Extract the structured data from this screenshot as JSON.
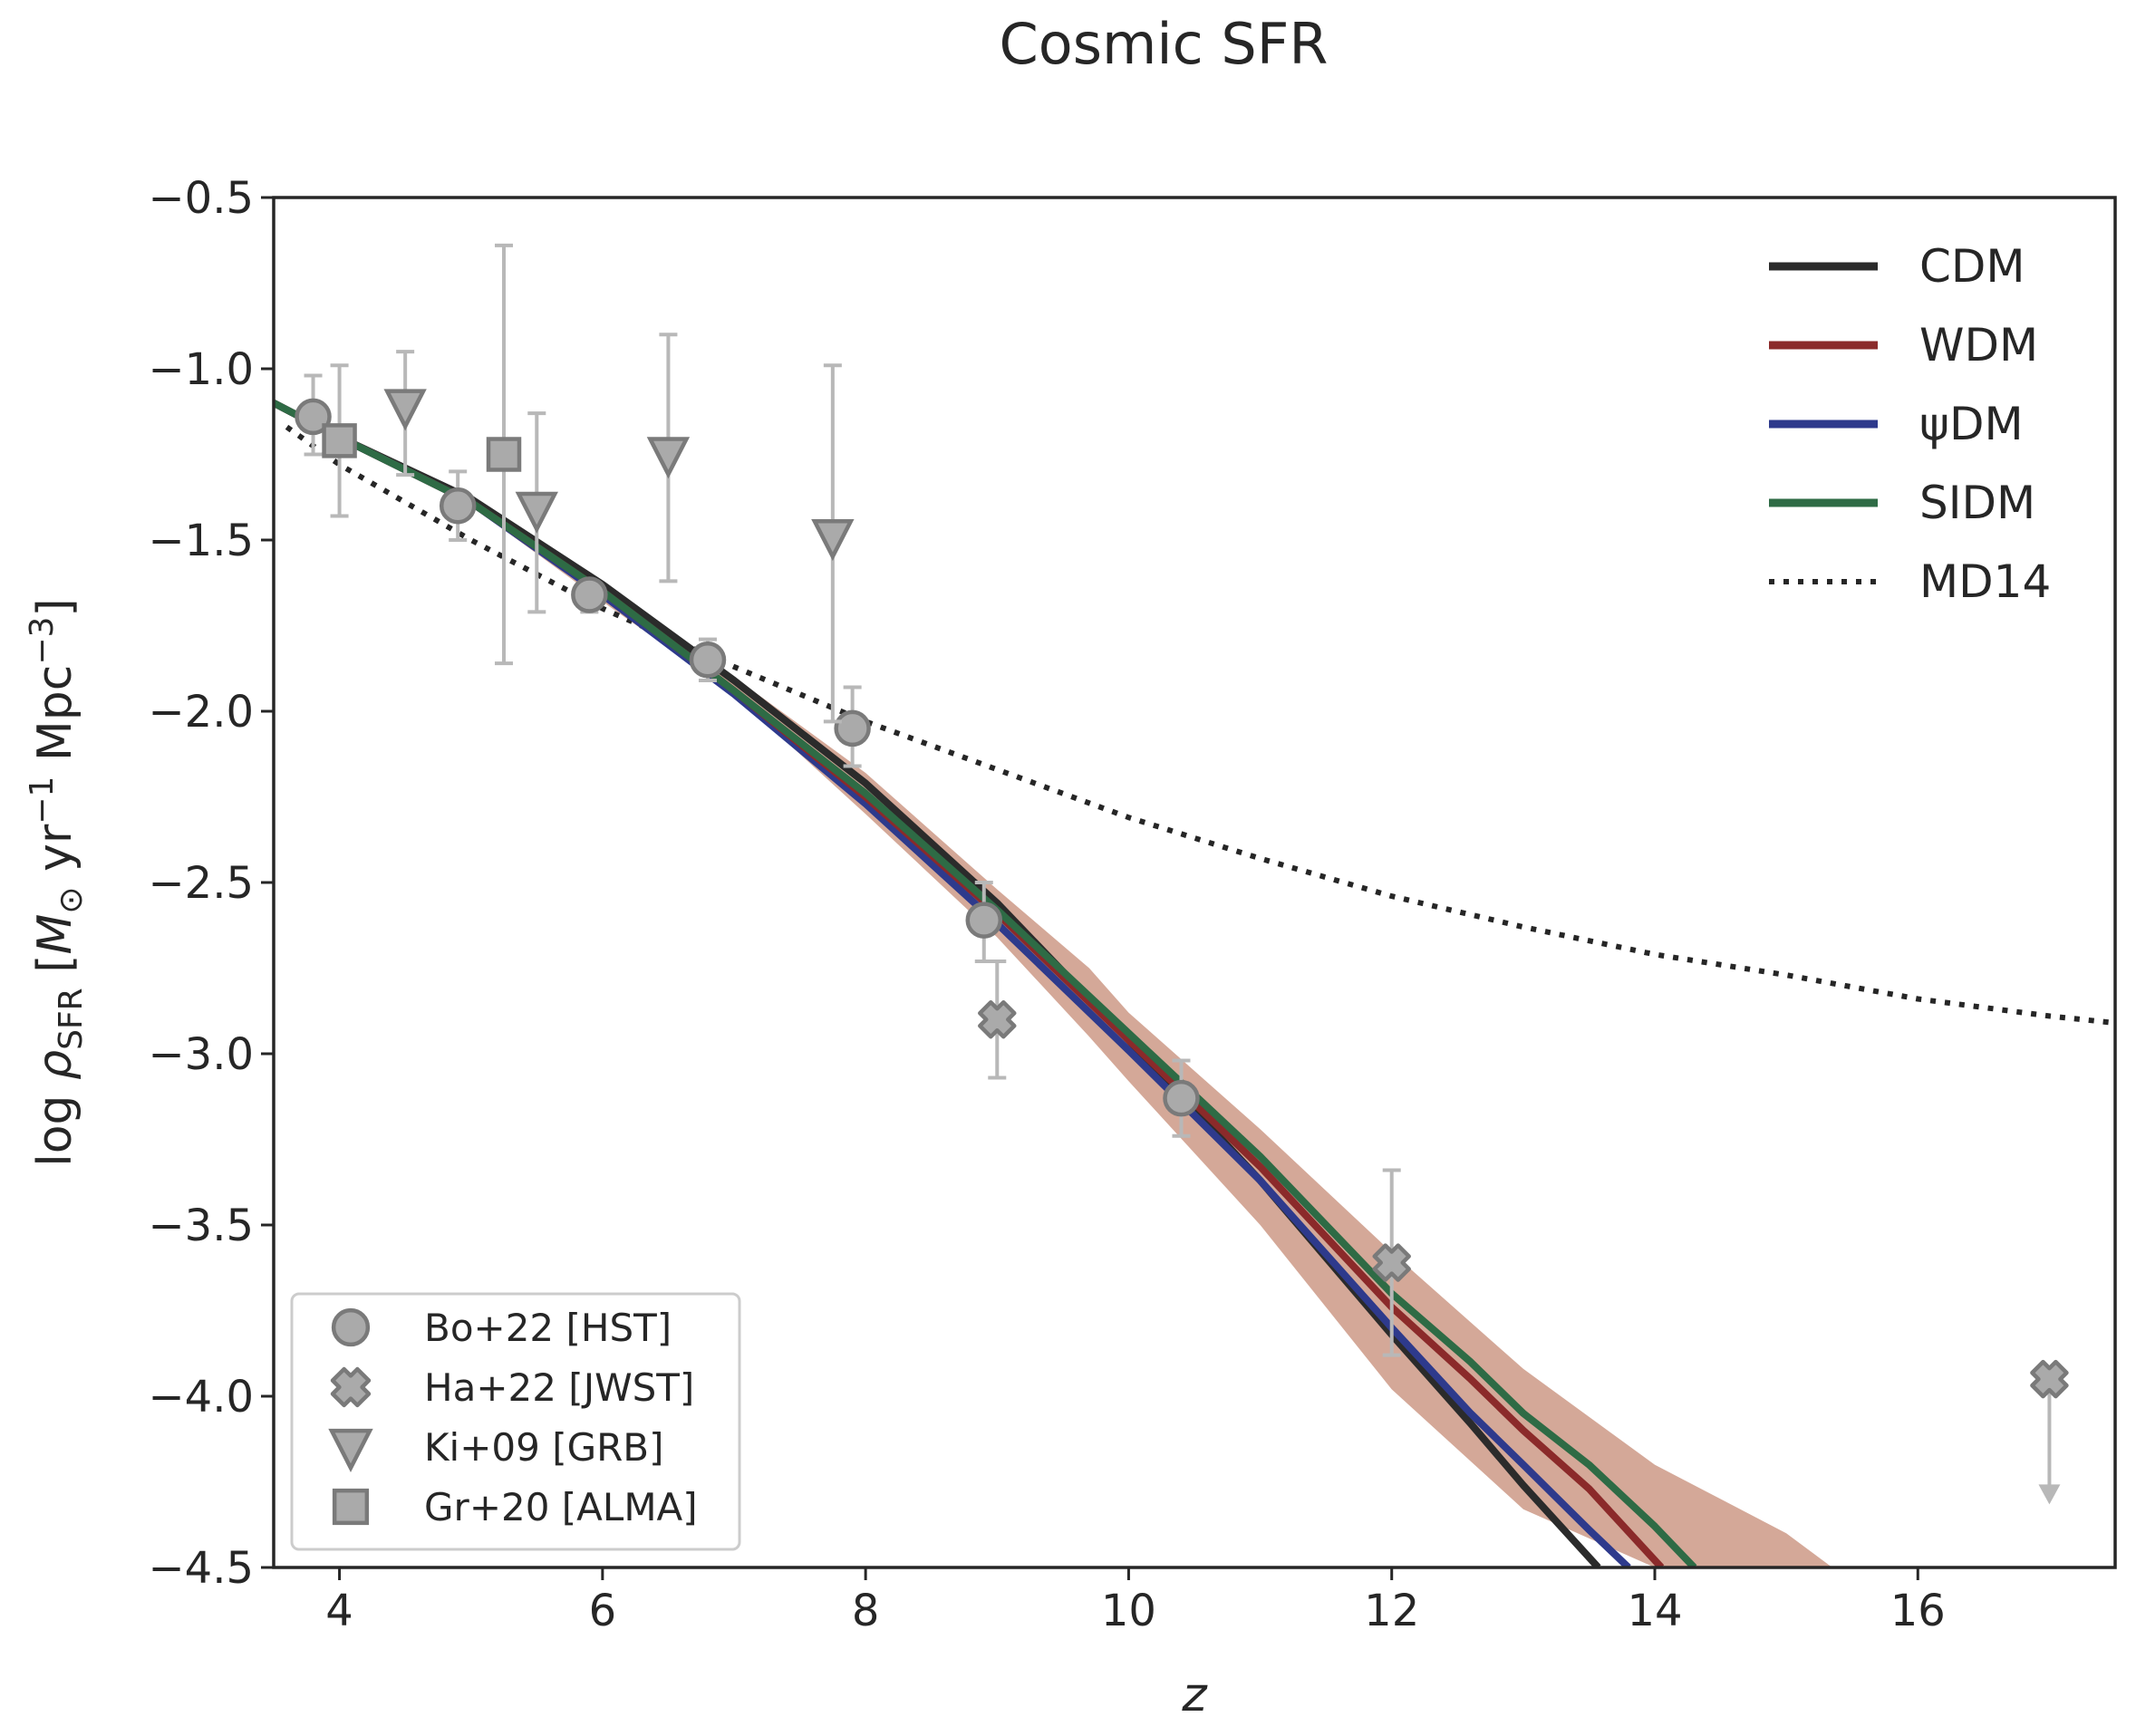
{
  "chart_data": {
    "type": "line",
    "title": "Cosmic SFR",
    "xlabel": "z",
    "ylabel": "log ρ_SFR [M_⊙ yr⁻¹ Mpc⁻³]",
    "xlim": [
      3.5,
      17.5
    ],
    "ylim": [
      -4.5,
      -0.5
    ],
    "xticks": [
      4,
      6,
      8,
      10,
      12,
      14,
      16
    ],
    "yticks": [
      -0.5,
      -1.0,
      -1.5,
      -2.0,
      -2.5,
      -3.0,
      -3.5,
      -4.0,
      -4.5
    ],
    "xtick_labels": [
      "4",
      "6",
      "8",
      "10",
      "12",
      "14",
      "16"
    ],
    "ytick_labels": [
      "−0.5",
      "−1.0",
      "−1.5",
      "−2.0",
      "−2.5",
      "−3.0",
      "−3.5",
      "−4.0",
      "−4.5"
    ],
    "grid": false,
    "colors": {
      "CDM": "#2b2b2b",
      "WDM": "#8b2a2a",
      "psiDM": "#2e3a8c",
      "SIDM": "#2e6b45",
      "MD14": "#262626",
      "band": "#d4a898",
      "data_marker": "#aaaaaa",
      "data_edge": "#7a7a7a",
      "errorbar": "#b8b8b8"
    },
    "band": {
      "name": "uncertainty",
      "x": [
        3.5,
        4,
        5,
        6,
        7,
        8,
        9,
        9.7,
        10,
        11,
        12,
        13,
        14,
        15,
        15.35
      ],
      "upper": [
        -1.1,
        -1.2,
        -1.4,
        -1.66,
        -1.9,
        -2.18,
        -2.52,
        -2.75,
        -2.88,
        -3.22,
        -3.58,
        -3.92,
        -4.2,
        -4.4,
        -4.5
      ],
      "lower": [
        -1.1,
        -1.2,
        -1.4,
        -1.68,
        -1.95,
        -2.3,
        -2.66,
        -2.95,
        -3.08,
        -3.5,
        -3.98,
        -4.33,
        -4.5,
        -4.5,
        -4.5
      ]
    },
    "series": [
      {
        "name": "CDM",
        "style": "solid",
        "x": [
          3.5,
          4,
          5,
          6,
          7,
          8,
          9,
          10,
          11,
          12,
          12.6,
          13,
          13.57
        ],
        "y": [
          -1.1,
          -1.2,
          -1.38,
          -1.63,
          -1.91,
          -2.21,
          -2.56,
          -2.96,
          -3.37,
          -3.82,
          -4.08,
          -4.26,
          -4.5
        ]
      },
      {
        "name": "WDM",
        "style": "solid",
        "x": [
          3.5,
          4,
          5,
          6,
          7,
          8,
          9,
          10,
          11,
          12,
          12.6,
          13,
          13.5,
          14.05
        ],
        "y": [
          -1.1,
          -1.2,
          -1.39,
          -1.65,
          -1.94,
          -2.25,
          -2.59,
          -2.96,
          -3.33,
          -3.74,
          -3.95,
          -4.1,
          -4.27,
          -4.5
        ]
      },
      {
        "name": "ψDM",
        "style": "solid",
        "x": [
          3.5,
          4,
          5,
          6,
          7,
          8,
          9,
          10,
          11,
          12,
          12.6,
          13,
          13.5,
          13.8
        ],
        "y": [
          -1.1,
          -1.2,
          -1.39,
          -1.66,
          -1.95,
          -2.27,
          -2.62,
          -2.99,
          -3.37,
          -3.8,
          -4.05,
          -4.2,
          -4.39,
          -4.5
        ]
      },
      {
        "name": "SIDM",
        "style": "solid",
        "x": [
          3.5,
          4,
          5,
          6,
          7,
          8,
          9,
          10,
          11,
          12,
          12.6,
          13,
          13.5,
          14,
          14.3
        ],
        "y": [
          -1.1,
          -1.2,
          -1.39,
          -1.65,
          -1.94,
          -2.24,
          -2.58,
          -2.94,
          -3.3,
          -3.7,
          -3.9,
          -4.05,
          -4.2,
          -4.38,
          -4.5
        ]
      },
      {
        "name": "MD14",
        "style": "dotted",
        "x": [
          3.6,
          4,
          5,
          6,
          7,
          8,
          9,
          10,
          11,
          12,
          13,
          14,
          15,
          16,
          17,
          17.5
        ],
        "y": [
          -1.17,
          -1.28,
          -1.5,
          -1.7,
          -1.87,
          -2.03,
          -2.17,
          -2.31,
          -2.43,
          -2.54,
          -2.63,
          -2.71,
          -2.77,
          -2.84,
          -2.89,
          -2.91
        ]
      }
    ],
    "observations": [
      {
        "name": "Bo+22 [HST]",
        "marker": "circle",
        "points": [
          {
            "x": 3.8,
            "y": -1.14,
            "yerr_lo": -1.25,
            "yerr_hi": -1.02
          },
          {
            "x": 4.9,
            "y": -1.4,
            "yerr_lo": -1.5,
            "yerr_hi": -1.3
          },
          {
            "x": 5.9,
            "y": -1.66,
            "yerr_lo": -1.71,
            "yerr_hi": -1.62
          },
          {
            "x": 6.8,
            "y": -1.85,
            "yerr_lo": -1.91,
            "yerr_hi": -1.79
          },
          {
            "x": 7.9,
            "y": -2.05,
            "yerr_lo": -2.16,
            "yerr_hi": -1.93
          },
          {
            "x": 8.9,
            "y": -2.61,
            "yerr_lo": -2.73,
            "yerr_hi": -2.5
          },
          {
            "x": 10.4,
            "y": -3.13,
            "yerr_lo": -3.24,
            "yerr_hi": -3.02
          }
        ]
      },
      {
        "name": "Ha+22 [JWST]",
        "marker": "x",
        "points": [
          {
            "x": 9.0,
            "y": -2.9,
            "yerr_lo": -3.07,
            "yerr_hi": -2.73
          },
          {
            "x": 12.0,
            "y": -3.61,
            "yerr_lo": -3.88,
            "yerr_hi": -3.34
          },
          {
            "x": 17.0,
            "y": -3.95,
            "upper_limit": -4.3
          }
        ]
      },
      {
        "name": "Ki+09 [GRB]",
        "marker": "triangle_down",
        "points": [
          {
            "x": 4.5,
            "y": -1.11,
            "yerr_lo": -1.31,
            "yerr_hi": -0.95
          },
          {
            "x": 5.5,
            "y": -1.41,
            "yerr_lo": -1.71,
            "yerr_hi": -1.13
          },
          {
            "x": 6.5,
            "y": -1.25,
            "yerr_lo": -1.62,
            "yerr_hi": -0.9
          },
          {
            "x": 7.75,
            "y": -1.49,
            "yerr_lo": -2.03,
            "yerr_hi": -0.99
          }
        ]
      },
      {
        "name": "Gr+20 [ALMA]",
        "marker": "square",
        "points": [
          {
            "x": 4.0,
            "y": -1.21,
            "yerr_lo": -1.43,
            "yerr_hi": -0.99
          },
          {
            "x": 5.25,
            "y": -1.25,
            "yerr_lo": -1.86,
            "yerr_hi": -0.64
          }
        ]
      }
    ],
    "legend_models": [
      "CDM",
      "WDM",
      "ψDM",
      "SIDM",
      "MD14"
    ],
    "legend_models_position": "top-right",
    "legend_data": [
      "Bo+22 [HST]",
      "Ha+22 [JWST]",
      "Ki+09 [GRB]",
      "Gr+20 [ALMA]"
    ],
    "legend_data_position": "bottom-left"
  }
}
